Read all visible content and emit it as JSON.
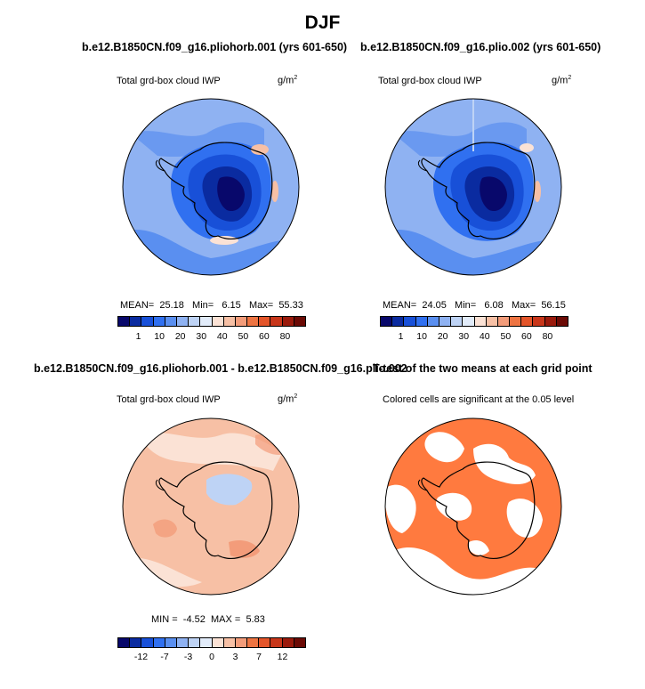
{
  "main_title": "DJF",
  "panels": {
    "p1": {
      "title": "b.e12.B1850CN.f09_g16.pliohorb.001 (yrs 601-650)",
      "subtitle": "Total grd-box cloud IWP",
      "units": "g/m",
      "units_exp": "2",
      "stats": {
        "mean_label": "MEAN=",
        "mean": "25.18",
        "min_label": "Min=",
        "min": "6.15",
        "max_label": "Max=",
        "max": "55.33"
      }
    },
    "p2": {
      "title": "b.e12.B1850CN.f09_g16.plio.002 (yrs 601-650)",
      "subtitle": "Total grd-box cloud IWP",
      "units": "g/m",
      "units_exp": "2",
      "stats": {
        "mean_label": "MEAN=",
        "mean": "24.05",
        "min_label": "Min=",
        "min": "6.08",
        "max_label": "Max=",
        "max": "56.15"
      }
    },
    "p3": {
      "title": "b.e12.B1850CN.f09_g16.pliohorb.001 - b.e12.B1850CN.f09_g16.plio.002",
      "subtitle": "Total grd-box cloud IWP",
      "units": "g/m",
      "units_exp": "2",
      "stats": {
        "min_label": "MIN =",
        "min": "-4.52",
        "max_label": "MAX =",
        "max": "5.83"
      }
    },
    "p4": {
      "title": "T-test of the two means at each grid point",
      "subtitle": "Colored cells are significant at the 0.05 level"
    }
  },
  "colorbars": {
    "absolute": {
      "colors": [
        "#08086b",
        "#0a2ba0",
        "#1850d8",
        "#3070f0",
        "#5a8ff0",
        "#8fb2f2",
        "#bed3f5",
        "#e2ecfa",
        "#fbe2d5",
        "#f7c0a5",
        "#f39c7a",
        "#ee7442",
        "#e4552a",
        "#c8361a",
        "#9a1a0c",
        "#6b0a05"
      ],
      "ticks": [
        "1",
        "10",
        "20",
        "30",
        "40",
        "50",
        "60",
        "80"
      ]
    },
    "difference": {
      "colors": [
        "#08086b",
        "#0a2ba0",
        "#1850d8",
        "#3070f0",
        "#5a8ff0",
        "#8fb2f2",
        "#bed3f5",
        "#e2ecfa",
        "#fbe2d5",
        "#f7c0a5",
        "#f39c7a",
        "#ee7442",
        "#e4552a",
        "#c8361a",
        "#9a1a0c",
        "#6b0a05"
      ],
      "ticks": [
        "-12",
        "-7",
        "-3",
        "0",
        "3",
        "7",
        "12"
      ]
    }
  },
  "map_colors": {
    "ocean_light": "#8fb2f2",
    "ocean_mid": "#5a8ff0",
    "ocean_dark": "#3070f0",
    "ice_edge": "#1850d8",
    "ice_core": "#0a2ba0",
    "ice_deep": "#08086b",
    "warm_spot": "#f7c0a5",
    "diff_base": "#f7c0a5",
    "diff_pale": "#fbe2d5",
    "diff_blue": "#bed3f5",
    "diff_warm": "#f39c7a",
    "sig_fill": "#ff7a3f"
  }
}
